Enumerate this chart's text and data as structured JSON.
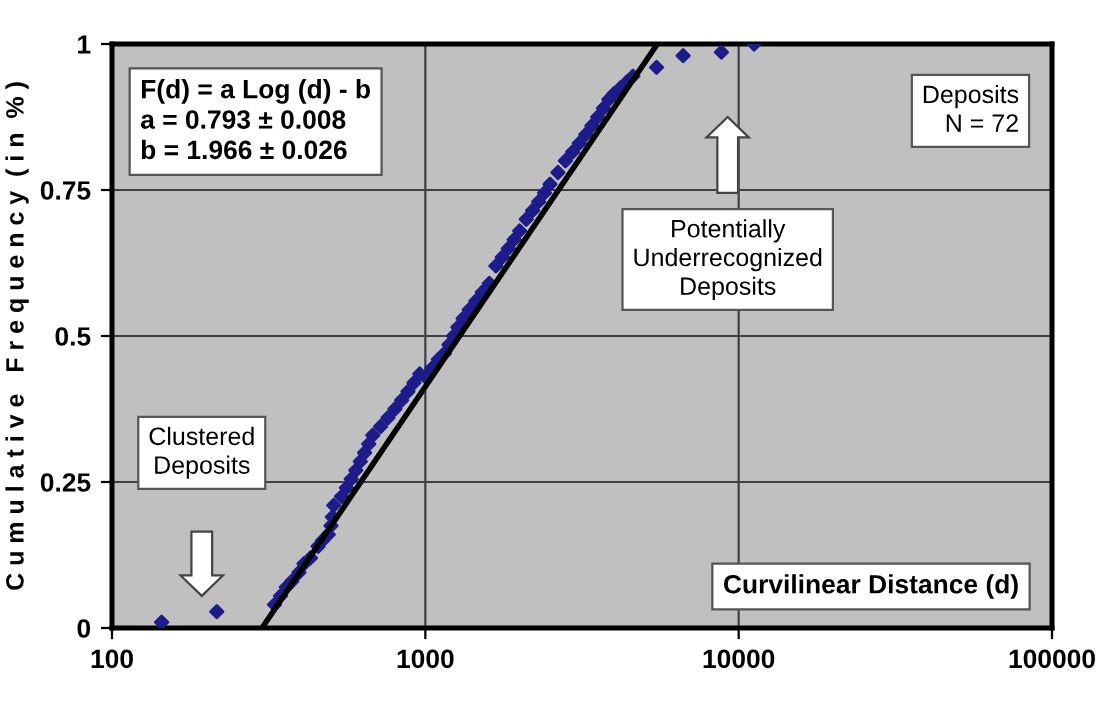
{
  "chart_data": {
    "type": "scatter",
    "ylabel": "C u m u l a t i v e   F r e q u e n c y  ( i n  % )",
    "log": "x",
    "xlim": [
      100,
      100000
    ],
    "xticks": [
      100,
      1000,
      10000,
      100000
    ],
    "ylim": [
      0,
      1
    ],
    "yticks": [
      0,
      0.25,
      0.5,
      0.75,
      1
    ],
    "grid": true,
    "marker": "diamond",
    "annotations": [
      "F(d) = a Log (d) - b\na = 0.793 ± 0.008\nb = 1.966 ± 0.026",
      "Deposits\nN = 72",
      "Potentially\nUnderrecognized\nDeposits",
      "Clustered\nDeposits",
      "Curvilinear Distance (d)"
    ],
    "series": [
      {
        "color": "#1c1c8a",
        "x": [
          144,
          216,
          330,
          345,
          360,
          375,
          395,
          410,
          430,
          455,
          470,
          490,
          500,
          505,
          510,
          540,
          560,
          580,
          600,
          620,
          640,
          660,
          680,
          720,
          760,
          800,
          840,
          880,
          920,
          960,
          1000,
          1050,
          1100,
          1150,
          1190,
          1230,
          1270,
          1320,
          1380,
          1450,
          1520,
          1600,
          1680,
          1760,
          1840,
          1920,
          2000,
          2100,
          2200,
          2300,
          2400,
          2500,
          2650,
          2800,
          2950,
          3100,
          3250,
          3400,
          3550,
          3700,
          3850,
          4000,
          4200,
          4400,
          4600,
          5470,
          6650,
          8810,
          11200
        ],
        "values": [
          0.01,
          0.028,
          0.04,
          0.055,
          0.07,
          0.08,
          0.095,
          0.11,
          0.12,
          0.14,
          0.15,
          0.16,
          0.175,
          0.19,
          0.21,
          0.225,
          0.24,
          0.255,
          0.27,
          0.285,
          0.3,
          0.315,
          0.33,
          0.345,
          0.36,
          0.375,
          0.39,
          0.405,
          0.42,
          0.435,
          0.43,
          0.445,
          0.46,
          0.47,
          0.485,
          0.5,
          0.515,
          0.53,
          0.545,
          0.56,
          0.575,
          0.59,
          0.62,
          0.635,
          0.65,
          0.665,
          0.68,
          0.7,
          0.715,
          0.73,
          0.745,
          0.76,
          0.78,
          0.8,
          0.815,
          0.83,
          0.845,
          0.86,
          0.875,
          0.89,
          0.905,
          0.915,
          0.925,
          0.935,
          0.945,
          0.96,
          0.98,
          0.986,
          1.0
        ]
      },
      {
        "type": "line",
        "color": "#000000",
        "line_style": "solid",
        "marker": "none",
        "x": [
          301,
          5500
        ],
        "values": [
          0,
          1
        ]
      }
    ]
  }
}
